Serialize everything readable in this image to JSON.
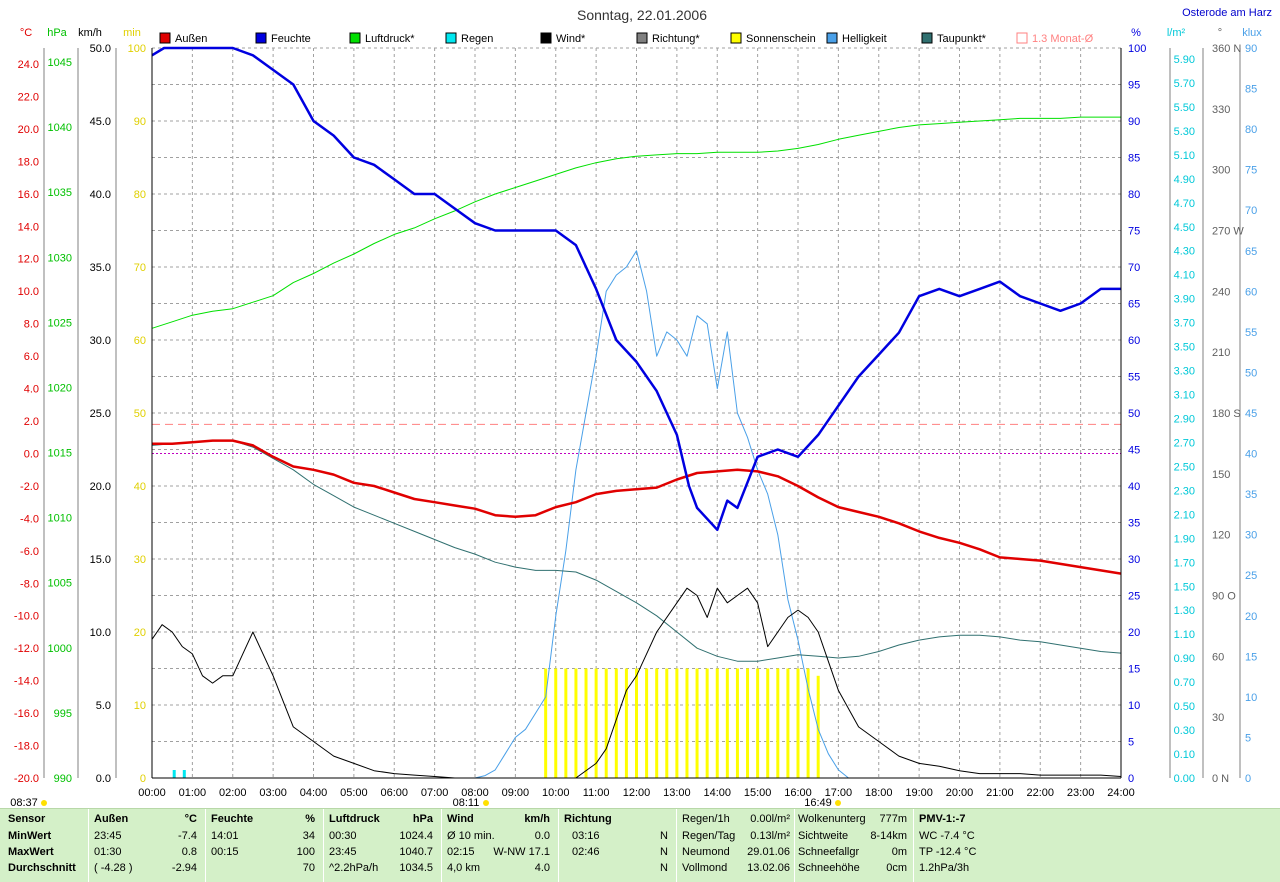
{
  "title": "Sonntag, 22.01.2006",
  "location": "Osterode am Harz",
  "legend": [
    {
      "label": "Außen",
      "color": "#e00000",
      "style": "filled"
    },
    {
      "label": "Feuchte",
      "color": "#0000e0",
      "style": "filled"
    },
    {
      "label": "Luftdruck*",
      "color": "#00e000",
      "style": "filled"
    },
    {
      "label": "Regen",
      "color": "#00e8f0",
      "style": "filled"
    },
    {
      "label": "Wind*",
      "color": "#000000",
      "style": "filled"
    },
    {
      "label": "Richtung*",
      "color": "#808080",
      "style": "filled"
    },
    {
      "label": "Sonnenschein",
      "color": "#ffff00",
      "style": "filled"
    },
    {
      "label": "Helligkeit",
      "color": "#4aa0e8",
      "style": "filled"
    },
    {
      "label": "Taupunkt*",
      "color": "#307070",
      "style": "filled"
    },
    {
      "label": "1.3 Monat-Ø",
      "color": "#ff8080",
      "style": "outline"
    }
  ],
  "axis_units": {
    "temp": "°C",
    "press": "hPa",
    "wind": "km/h",
    "sun": "min",
    "hum": "%",
    "rain": "l/m²",
    "dir": "°",
    "lux": "klux"
  },
  "axis_ticks": {
    "temp": [
      "24.0",
      "22.0",
      "20.0",
      "18.0",
      "16.0",
      "14.0",
      "12.0",
      "10.0",
      "8.0",
      "6.0",
      "4.0",
      "2.0",
      "0.0",
      "-2.0",
      "-4.0",
      "-6.0",
      "-8.0",
      "-10.0",
      "-12.0",
      "-14.0",
      "-16.0",
      "-18.0",
      "-20.0"
    ],
    "press": [
      "1045",
      "1040",
      "1035",
      "1030",
      "1025",
      "1020",
      "1015",
      "1010",
      "1005",
      "1000",
      "995",
      "990"
    ],
    "wind": [
      "50.0",
      "45.0",
      "40.0",
      "35.0",
      "30.0",
      "25.0",
      "20.0",
      "15.0",
      "10.0",
      "5.0",
      "0.0"
    ],
    "sun": [
      "100",
      "90",
      "80",
      "70",
      "60",
      "50",
      "40",
      "30",
      "20",
      "10",
      "0"
    ],
    "hum": [
      "100",
      "95",
      "90",
      "85",
      "80",
      "75",
      "70",
      "65",
      "60",
      "55",
      "50",
      "45",
      "40",
      "35",
      "30",
      "25",
      "20",
      "15",
      "10",
      "5",
      "0"
    ],
    "rain": [
      "5.90",
      "5.70",
      "5.50",
      "5.30",
      "5.10",
      "4.90",
      "4.70",
      "4.50",
      "4.30",
      "4.10",
      "3.90",
      "3.70",
      "3.50",
      "3.30",
      "3.10",
      "2.90",
      "2.70",
      "2.50",
      "2.30",
      "2.10",
      "1.90",
      "1.70",
      "1.50",
      "1.30",
      "1.10",
      "0.90",
      "0.70",
      "0.50",
      "0.30",
      "0.10",
      "0.00"
    ],
    "dir": [
      "360 N",
      "330",
      "300",
      "270 W",
      "240",
      "210",
      "180 S",
      "150",
      "120",
      "90 O",
      "60",
      "30",
      "0  N"
    ],
    "lux": [
      "90",
      "85",
      "80",
      "75",
      "70",
      "65",
      "60",
      "55",
      "50",
      "45",
      "40",
      "35",
      "30",
      "25",
      "20",
      "15",
      "10",
      "5",
      "0"
    ]
  },
  "x_ticks": [
    "00:00",
    "01:00",
    "02:00",
    "03:00",
    "04:00",
    "05:00",
    "06:00",
    "07:00",
    "08:00",
    "09:00",
    "10:00",
    "11:00",
    "12:00",
    "13:00",
    "14:00",
    "15:00",
    "16:00",
    "17:00",
    "18:00",
    "19:00",
    "20:00",
    "21:00",
    "22:00",
    "23:00",
    "24:00"
  ],
  "sun_events": {
    "moonrise": "08:37",
    "sunrise": "08:11",
    "sunset": "16:49"
  },
  "chart_data": {
    "type": "line",
    "x_unit": "hour of day",
    "xlim": [
      0,
      24
    ],
    "series": [
      {
        "name": "Außen",
        "unit": "°C",
        "ylim": [
          -20,
          25
        ],
        "x": [
          0,
          0.5,
          1,
          1.5,
          2,
          2.5,
          3,
          3.5,
          4,
          4.5,
          5,
          5.5,
          6,
          6.5,
          7,
          7.5,
          8,
          8.5,
          9,
          9.5,
          10,
          10.5,
          11,
          11.5,
          12,
          12.5,
          13,
          13.5,
          14,
          14.5,
          15,
          15.5,
          16,
          16.5,
          17,
          17.5,
          18,
          18.5,
          19,
          19.5,
          20,
          20.5,
          21,
          21.5,
          22,
          22.5,
          23,
          23.5,
          24
        ],
        "y": [
          0.6,
          0.6,
          0.7,
          0.8,
          0.8,
          0.5,
          -0.2,
          -0.8,
          -1.0,
          -1.3,
          -1.8,
          -2.0,
          -2.4,
          -2.8,
          -3.0,
          -3.2,
          -3.4,
          -3.8,
          -3.9,
          -3.8,
          -3.3,
          -3.0,
          -2.5,
          -2.3,
          -2.2,
          -2.1,
          -1.6,
          -1.2,
          -1.1,
          -1.0,
          -1.1,
          -1.4,
          -2.0,
          -2.7,
          -3.3,
          -3.6,
          -3.9,
          -4.3,
          -4.8,
          -5.2,
          -5.5,
          -5.9,
          -6.4,
          -6.5,
          -6.6,
          -6.8,
          -7.0,
          -7.2,
          -7.4
        ]
      },
      {
        "name": "Feuchte",
        "unit": "%",
        "ylim": [
          0,
          100
        ],
        "x": [
          0,
          0.3,
          1,
          1.5,
          2,
          2.5,
          3,
          3.5,
          4,
          4.5,
          5,
          5.5,
          6,
          6.5,
          7,
          7.5,
          8,
          8.5,
          9,
          9.5,
          10,
          10.5,
          11,
          11.5,
          12,
          12.5,
          13,
          13.3,
          13.5,
          14,
          14.25,
          14.5,
          15,
          15.5,
          16,
          16.5,
          17,
          17.5,
          18,
          18.5,
          19,
          19.5,
          20,
          20.5,
          21,
          21.5,
          22,
          22.5,
          23,
          23.5,
          24
        ],
        "y": [
          99,
          100,
          100,
          100,
          100,
          99,
          97,
          95,
          90,
          88,
          85,
          84,
          82,
          80,
          80,
          78,
          76,
          75,
          75,
          75,
          75,
          73,
          67,
          60,
          57,
          53,
          47,
          40,
          37,
          34,
          38,
          37,
          44,
          45,
          44,
          47,
          51,
          55,
          58,
          61,
          66,
          67,
          66,
          67,
          68,
          66,
          65,
          64,
          65,
          67,
          67
        ]
      },
      {
        "name": "Luftdruck*",
        "unit": "hPa",
        "ylim": [
          990,
          1046
        ],
        "x": [
          0,
          0.5,
          1,
          1.5,
          2,
          2.5,
          3,
          3.5,
          4,
          4.5,
          5,
          5.5,
          6,
          6.5,
          7,
          7.5,
          8,
          8.5,
          9,
          9.5,
          10,
          10.5,
          11,
          11.5,
          12,
          12.5,
          13,
          13.5,
          14,
          14.5,
          15,
          15.5,
          16,
          16.5,
          17,
          17.5,
          18,
          18.5,
          19,
          19.5,
          20,
          20.5,
          21,
          21.5,
          22,
          22.5,
          23,
          23.5,
          24
        ],
        "y": [
          1024.5,
          1025,
          1025.5,
          1025.8,
          1026,
          1026.5,
          1027,
          1028,
          1028.7,
          1029.5,
          1030.2,
          1031,
          1031.7,
          1032.2,
          1032.9,
          1033.5,
          1034.2,
          1034.8,
          1035.3,
          1035.8,
          1036.3,
          1036.8,
          1037.2,
          1037.5,
          1037.7,
          1037.8,
          1037.9,
          1037.9,
          1038,
          1038,
          1038,
          1038.1,
          1038.3,
          1038.6,
          1039,
          1039.3,
          1039.6,
          1039.9,
          1040.1,
          1040.2,
          1040.3,
          1040.4,
          1040.5,
          1040.6,
          1040.6,
          1040.6,
          1040.7,
          1040.7,
          1040.7
        ]
      },
      {
        "name": "Wind*",
        "unit": "km/h",
        "ylim": [
          0,
          50
        ],
        "x": [
          0,
          0.25,
          0.5,
          0.75,
          1,
          1.25,
          1.5,
          1.75,
          2,
          2.25,
          2.5,
          2.75,
          3,
          3.5,
          4,
          4.5,
          5,
          5.5,
          6,
          6.5,
          7,
          7.5,
          8,
          8.5,
          9,
          9.5,
          10,
          10.5,
          11,
          11.25,
          11.5,
          11.75,
          12,
          12.5,
          13,
          13.25,
          13.5,
          13.75,
          14,
          14.25,
          14.5,
          14.75,
          15,
          15.25,
          15.5,
          15.75,
          16,
          16.25,
          16.5,
          16.75,
          17,
          17.5,
          18,
          18.5,
          19,
          19.5,
          20,
          20.5,
          21,
          21.5,
          22,
          22.5,
          23,
          23.5,
          24
        ],
        "y": [
          9.5,
          10.5,
          10,
          9,
          8.5,
          7,
          6.5,
          7,
          7,
          8.5,
          10,
          8.5,
          7,
          3.5,
          2.5,
          1.5,
          1,
          0.5,
          0.3,
          0.2,
          0.1,
          0,
          0,
          0,
          0,
          0,
          0,
          0,
          1,
          2,
          4,
          6,
          7,
          10,
          12,
          13,
          12.5,
          11,
          13,
          12,
          12.5,
          13,
          12,
          9,
          10,
          11,
          11.5,
          11,
          10,
          8,
          6,
          3.5,
          2.5,
          1.5,
          1,
          0.8,
          0.5,
          0.3,
          0.3,
          0.3,
          0.2,
          0.2,
          0.2,
          0.2,
          0.1
        ]
      },
      {
        "name": "Taupunkt*",
        "unit": "°C",
        "ylim": [
          -20,
          25
        ],
        "x": [
          0,
          0.5,
          1,
          1.5,
          2,
          2.5,
          3,
          3.5,
          4,
          4.5,
          5,
          5.5,
          6,
          6.5,
          7,
          7.5,
          8,
          8.5,
          9,
          9.5,
          10,
          10.5,
          11,
          11.5,
          12,
          12.5,
          13,
          13.5,
          14,
          14.5,
          15,
          15.5,
          16,
          16.5,
          17,
          17.5,
          18,
          18.5,
          19,
          19.5,
          20,
          20.5,
          21,
          21.5,
          22,
          22.5,
          23,
          23.5,
          24
        ],
        "y": [
          0.5,
          0.6,
          0.7,
          0.8,
          0.8,
          0.4,
          -0.3,
          -1.0,
          -1.9,
          -2.6,
          -3.3,
          -3.8,
          -4.3,
          -4.8,
          -5.3,
          -5.8,
          -6.2,
          -6.7,
          -7.0,
          -7.2,
          -7.2,
          -7.3,
          -7.8,
          -8.5,
          -9.2,
          -10.0,
          -11.0,
          -12.0,
          -12.5,
          -12.8,
          -12.8,
          -12.6,
          -12.4,
          -12.5,
          -12.6,
          -12.5,
          -12.2,
          -11.8,
          -11.5,
          -11.3,
          -11.2,
          -11.2,
          -11.3,
          -11.5,
          -11.6,
          -11.8,
          -12.0,
          -12.2,
          -12.3
        ]
      },
      {
        "name": "Helligkeit",
        "unit": "klux",
        "ylim": [
          0,
          90
        ],
        "x": [
          0,
          7.5,
          8,
          8.25,
          8.5,
          8.75,
          9,
          9.25,
          9.5,
          9.75,
          10,
          10.25,
          10.5,
          10.75,
          11,
          11.25,
          11.5,
          11.75,
          12,
          12.25,
          12.5,
          12.75,
          13,
          13.25,
          13.5,
          13.75,
          14,
          14.25,
          14.5,
          14.75,
          15,
          15.25,
          15.5,
          15.75,
          16,
          16.25,
          16.5,
          16.75,
          17,
          17.25,
          18,
          24
        ],
        "y": [
          0,
          0,
          0,
          0.3,
          1,
          3,
          5,
          6,
          8,
          10,
          20,
          28,
          38,
          45,
          52,
          60,
          62,
          63,
          65,
          60,
          52,
          55,
          54,
          52,
          57,
          56,
          48,
          55,
          45,
          42,
          38,
          35,
          30,
          22,
          17,
          11,
          6,
          3,
          1,
          0,
          0,
          0
        ]
      },
      {
        "name": "Sonnenschein",
        "unit": "min",
        "ylim": [
          0,
          100
        ],
        "x": [
          9.75,
          10,
          10.25,
          10.5,
          10.75,
          11,
          11.25,
          11.5,
          11.75,
          12,
          12.25,
          12.5,
          12.75,
          13,
          13.25,
          13.5,
          13.75,
          14,
          14.25,
          14.5,
          14.75,
          15,
          15.25,
          15.5,
          15.75,
          16,
          16.25,
          16.5
        ],
        "y": [
          15,
          15,
          15,
          15,
          15,
          15,
          15,
          15,
          15,
          15,
          15,
          15,
          15,
          15,
          15,
          15,
          15,
          15,
          15,
          15,
          15,
          15,
          15,
          15,
          15,
          15,
          15,
          14
        ]
      }
    ],
    "reference_lines": [
      {
        "name": "1.3 Monat-Ø",
        "unit": "°C",
        "y": 1.8,
        "color": "#ff8080",
        "style": "dashed"
      }
    ]
  },
  "table": {
    "sensor": {
      "title": "Sensor",
      "rows": [
        "MinWert",
        "MaxWert",
        "Durchschnitt"
      ]
    },
    "aussen": {
      "title": "Außen",
      "unit": "°C",
      "rows": [
        [
          "23:45",
          "-7.4"
        ],
        [
          "01:30",
          "0.8"
        ],
        [
          "( -4.28 )",
          "-2.94"
        ]
      ]
    },
    "feuchte": {
      "title": "Feuchte",
      "unit": "%",
      "rows": [
        [
          "14:01",
          "34"
        ],
        [
          "00:15",
          "100"
        ],
        [
          "",
          "70"
        ]
      ]
    },
    "luftdruck": {
      "title": "Luftdruck",
      "unit": "hPa",
      "rows": [
        [
          "00:30",
          "1024.4"
        ],
        [
          "23:45",
          "1040.7"
        ],
        [
          "^2.2hPa/h",
          "1034.5"
        ]
      ]
    },
    "wind": {
      "title": "Wind",
      "unit": "km/h",
      "rows": [
        [
          "Ø 10 min.",
          "0.0"
        ],
        [
          "02:15",
          "W-NW 17.1"
        ],
        [
          "4,0 km",
          "4.0"
        ]
      ]
    },
    "richtung": {
      "title": "Richtung",
      "rows": [
        [
          "03:16",
          "N"
        ],
        [
          "02:46",
          "N"
        ],
        [
          "",
          "N"
        ]
      ]
    },
    "regen": {
      "rows": [
        [
          "Regen/1h",
          "0.00l/m²"
        ],
        [
          "Regen/Tag",
          "0.13l/m²"
        ],
        [
          "Neumond",
          "29.01.06"
        ],
        [
          "Vollmond",
          "13.02.06"
        ]
      ]
    },
    "wolken": {
      "rows": [
        [
          "Wolkenunterg",
          "777m"
        ],
        [
          "Sichtweite",
          "8-14km"
        ],
        [
          "Schneefallgr",
          "0m"
        ],
        [
          "Schneehöhe",
          "0cm"
        ]
      ]
    },
    "pmv": {
      "rows": [
        "PMV-1:-7",
        "WC -7.4 °C",
        "TP -12.4 °C",
        "1.2hPa/3h"
      ]
    }
  }
}
